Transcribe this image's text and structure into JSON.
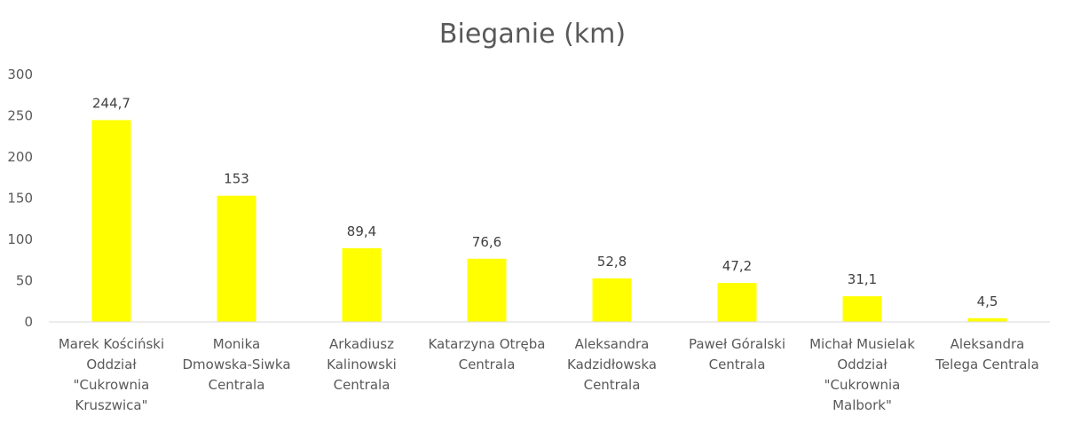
{
  "chart_data": {
    "type": "bar",
    "title": "Bieganie (km)",
    "categories": [
      [
        "Marek Kościński",
        "Oddział",
        "\"Cukrownia",
        "Kruszwica\""
      ],
      [
        "Monika",
        "Dmowska-Siwka",
        "Centrala"
      ],
      [
        "Arkadiusz",
        "Kalinowski",
        "Centrala"
      ],
      [
        "Katarzyna Otręba",
        "Centrala"
      ],
      [
        "Aleksandra",
        "Kadzidłowska",
        "Centrala"
      ],
      [
        "Paweł Góralski",
        "Centrala"
      ],
      [
        "Michał Musielak",
        "Oddział",
        "\"Cukrownia",
        "Malbork\""
      ],
      [
        "Aleksandra",
        "Telega Centrala"
      ]
    ],
    "values": [
      244.7,
      153,
      89.4,
      76.6,
      52.8,
      47.2,
      31.1,
      4.5
    ],
    "data_labels": [
      "244,7",
      "153",
      "89,4",
      "76,6",
      "52,8",
      "47,2",
      "31,1",
      "4,5"
    ],
    "yticks": [
      "0",
      "50",
      "100",
      "150",
      "200",
      "250",
      "300"
    ],
    "ylim": [
      0,
      300
    ],
    "grid": false,
    "legend": "none",
    "bar_color": "#FFFF00",
    "text_color": "#595959",
    "axis_color": "#D9D9D9"
  }
}
